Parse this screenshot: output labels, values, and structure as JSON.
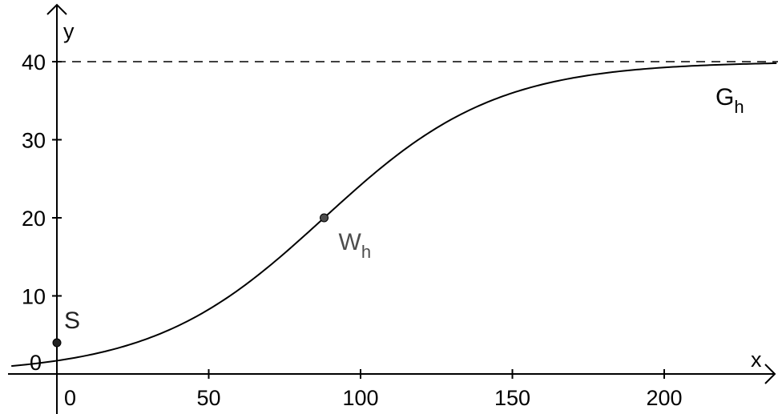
{
  "chart_data": {
    "type": "line",
    "title": "",
    "xlabel": "x",
    "ylabel": "y",
    "xlim": [
      -15,
      237
    ],
    "ylim": [
      -5,
      47
    ],
    "x_ticks": [
      0,
      50,
      100,
      150,
      200
    ],
    "y_ticks": [
      10,
      20,
      30,
      40
    ],
    "x_tick_labels": [
      "0",
      "50",
      "100",
      "150",
      "200"
    ],
    "y_tick_labels": [
      "10",
      "20",
      "30",
      "40"
    ],
    "origin_label": "0",
    "grid": false,
    "asymptote": {
      "y": 40,
      "style": "dashed"
    },
    "curve": {
      "name": "G",
      "name_sub": "h",
      "function": "logistic",
      "L": 40,
      "k": 0.0354,
      "x0": 88
    },
    "points": [
      {
        "name": "S",
        "sub": "",
        "x": 0,
        "y": 4,
        "color": "#222222"
      },
      {
        "name": "W",
        "sub": "h",
        "x": 88,
        "y": 20,
        "color": "#4d4d4d"
      }
    ]
  }
}
